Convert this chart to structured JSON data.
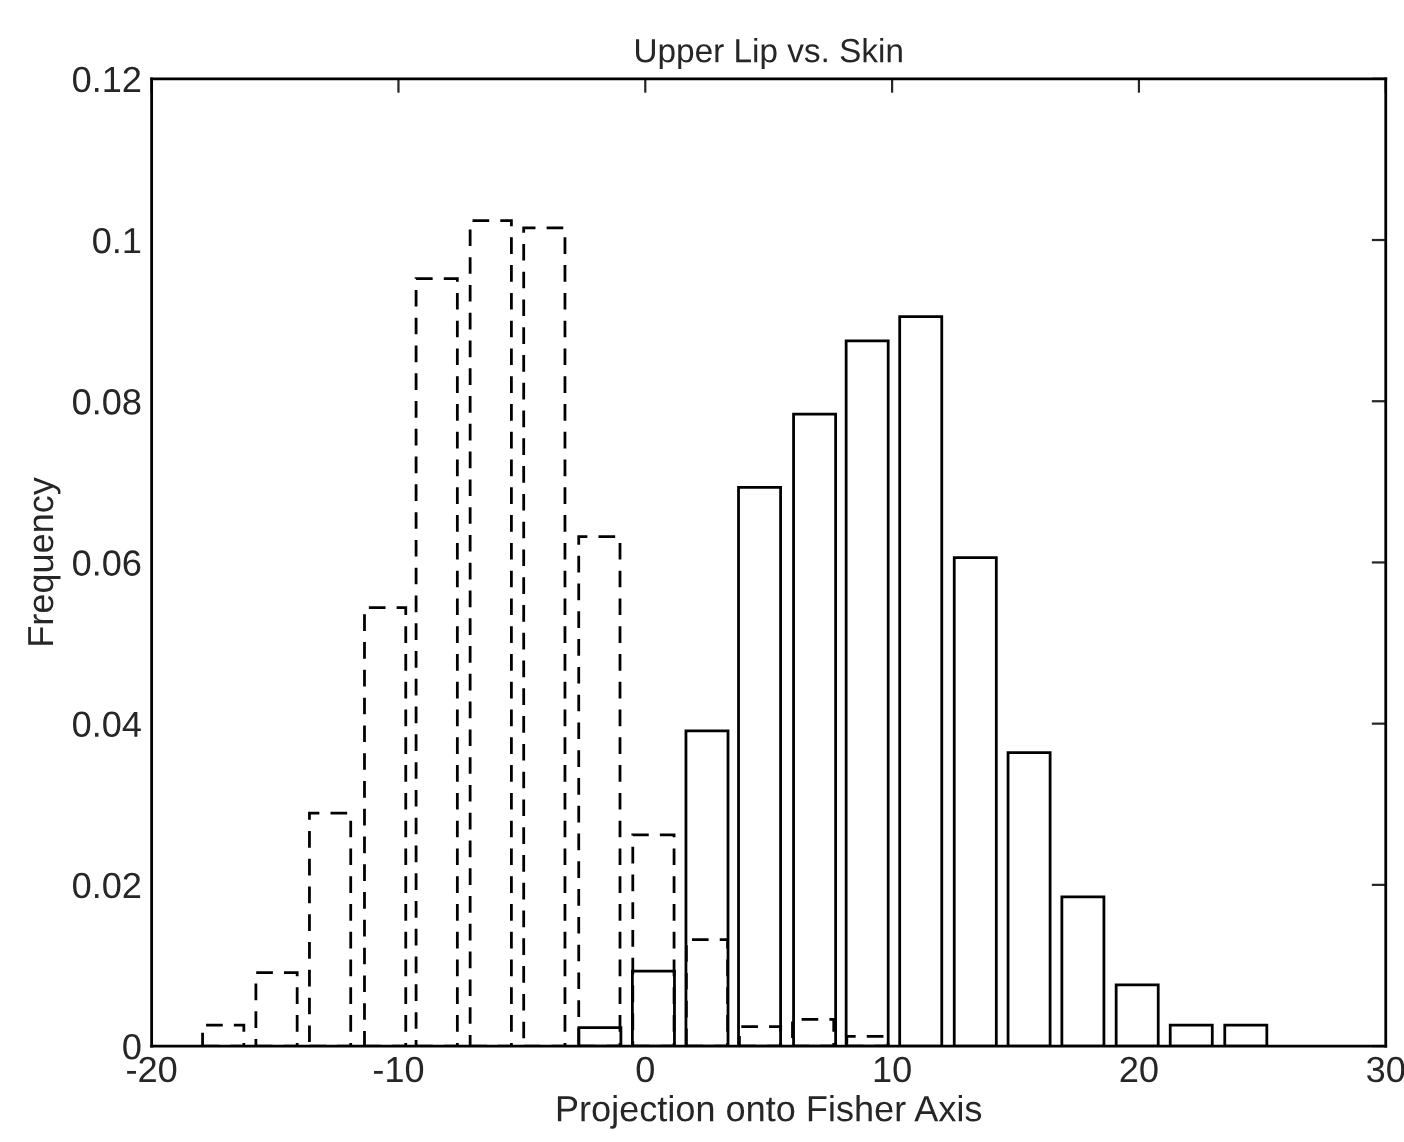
{
  "chart_data": {
    "type": "bar",
    "title": "Upper Lip vs. Skin",
    "xlabel": "Projection onto Fisher Axis",
    "ylabel": "Frequency",
    "series": [
      {
        "color": "#000000",
        "line_style": "dashed",
        "x": [
          -17.1,
          -14.94,
          -12.77,
          -10.54,
          -8.45,
          -6.26,
          -4.09,
          -1.86,
          0.33,
          2.5,
          4.65,
          6.8,
          9.0
        ],
        "values": [
          0.0026,
          0.0091,
          0.0289,
          0.0544,
          0.0952,
          0.1024,
          0.1015,
          0.0632,
          0.0262,
          0.0132,
          0.0024,
          0.0033,
          0.0012
        ]
      },
      {
        "color": "#000000",
        "line_style": "solid",
        "x": [
          -1.84,
          0.33,
          2.5,
          4.63,
          6.86,
          8.99,
          11.16,
          13.37,
          15.55,
          17.73,
          19.93,
          22.12,
          24.33
        ],
        "values": [
          0.0023,
          0.0093,
          0.0391,
          0.0693,
          0.0784,
          0.0875,
          0.0905,
          0.0606,
          0.0364,
          0.0185,
          0.0076,
          0.0026,
          0.0026
        ]
      }
    ],
    "xlim": [
      -20,
      30
    ],
    "xticks": [
      -20,
      -10,
      0,
      10,
      20,
      30
    ],
    "ylim": [
      0,
      0.12
    ],
    "yticks": [
      0,
      0.02,
      0.04,
      0.06,
      0.08,
      0.1,
      0.12
    ],
    "grid": false,
    "legend": false
  }
}
